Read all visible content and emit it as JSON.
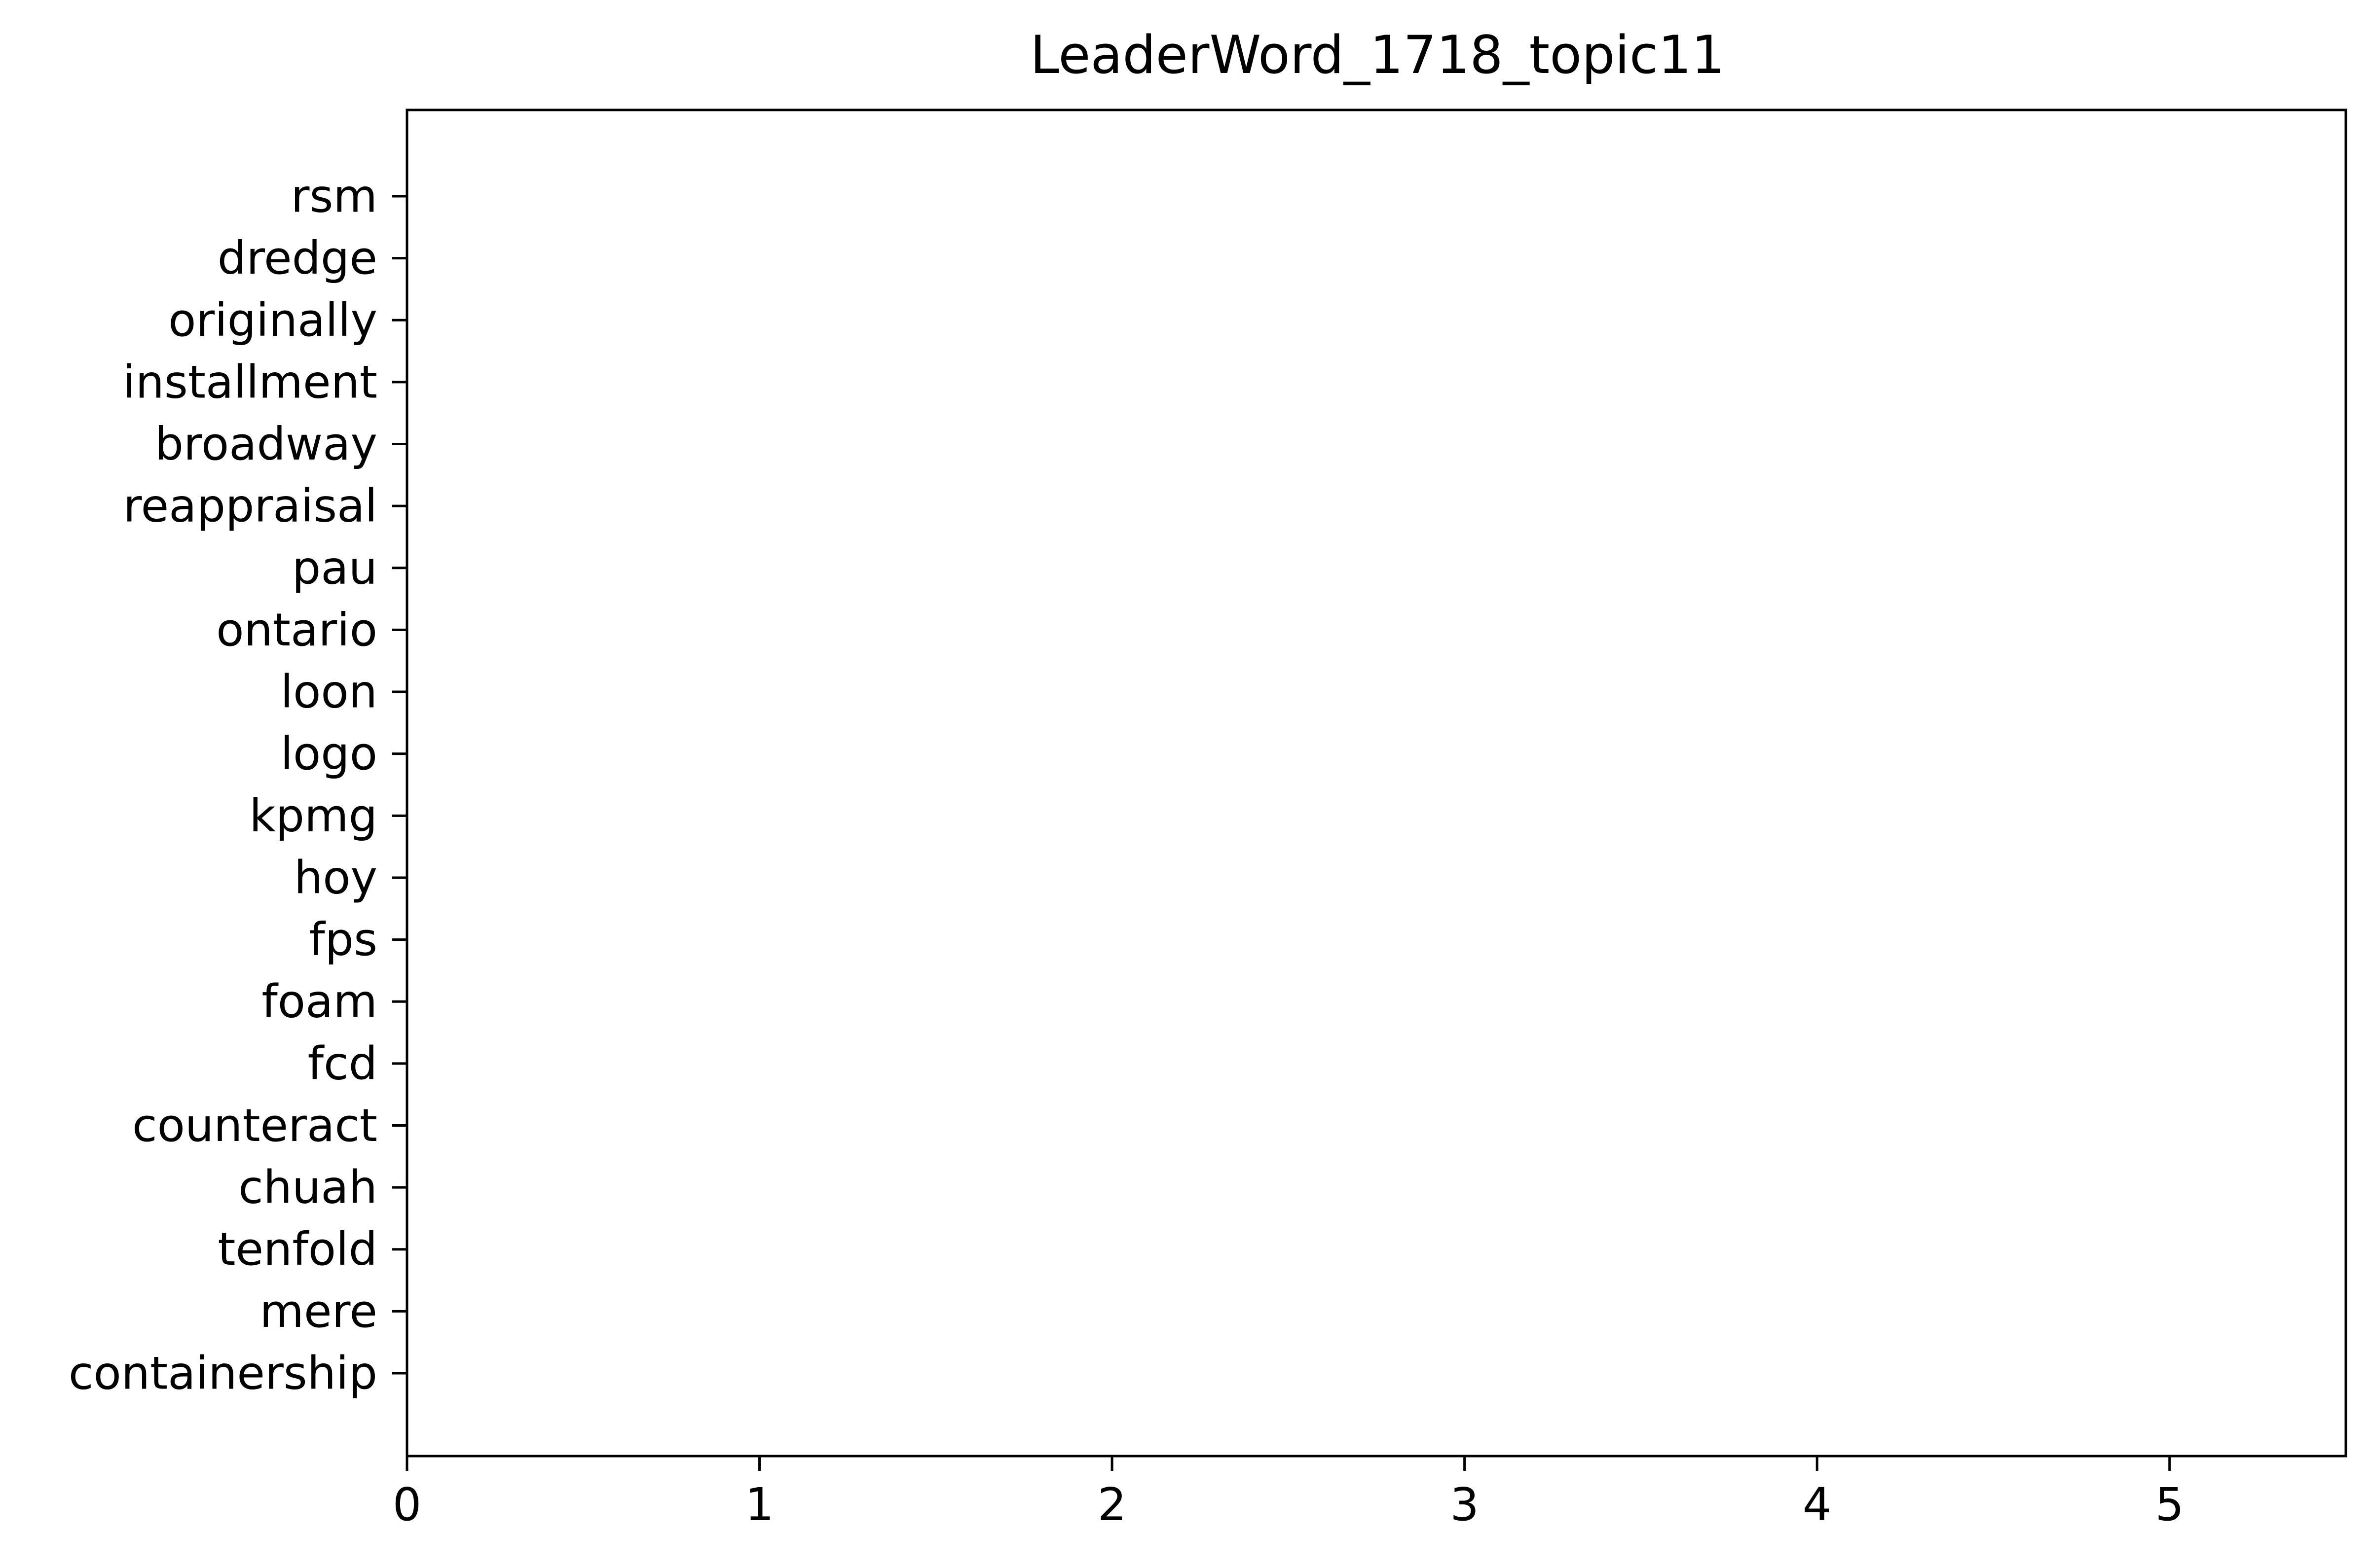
{
  "chart_data": {
    "type": "bar",
    "orientation": "horizontal",
    "title": "LeaderWord_1718_topic11",
    "xlabel": "",
    "ylabel": "",
    "categories": [
      "rsm",
      "dredge",
      "originally",
      "installment",
      "broadway",
      "reappraisal",
      "pau",
      "ontario",
      "loon",
      "logo",
      "kpmg",
      "hoy",
      "fps",
      "foam",
      "fcd",
      "counteract",
      "chuah",
      "tenfold",
      "mere",
      "containership"
    ],
    "values": [
      0,
      0,
      0,
      0,
      0,
      0,
      0,
      0,
      0,
      0,
      0,
      0,
      0,
      0,
      0,
      0,
      0,
      0,
      0,
      0
    ],
    "xlim": [
      0,
      5.5
    ],
    "xticks": [
      "0",
      "1",
      "2",
      "3",
      "4",
      "5"
    ],
    "grid": false,
    "colors": {
      "axis": "#000000",
      "text": "#000000",
      "background": "#ffffff"
    }
  }
}
